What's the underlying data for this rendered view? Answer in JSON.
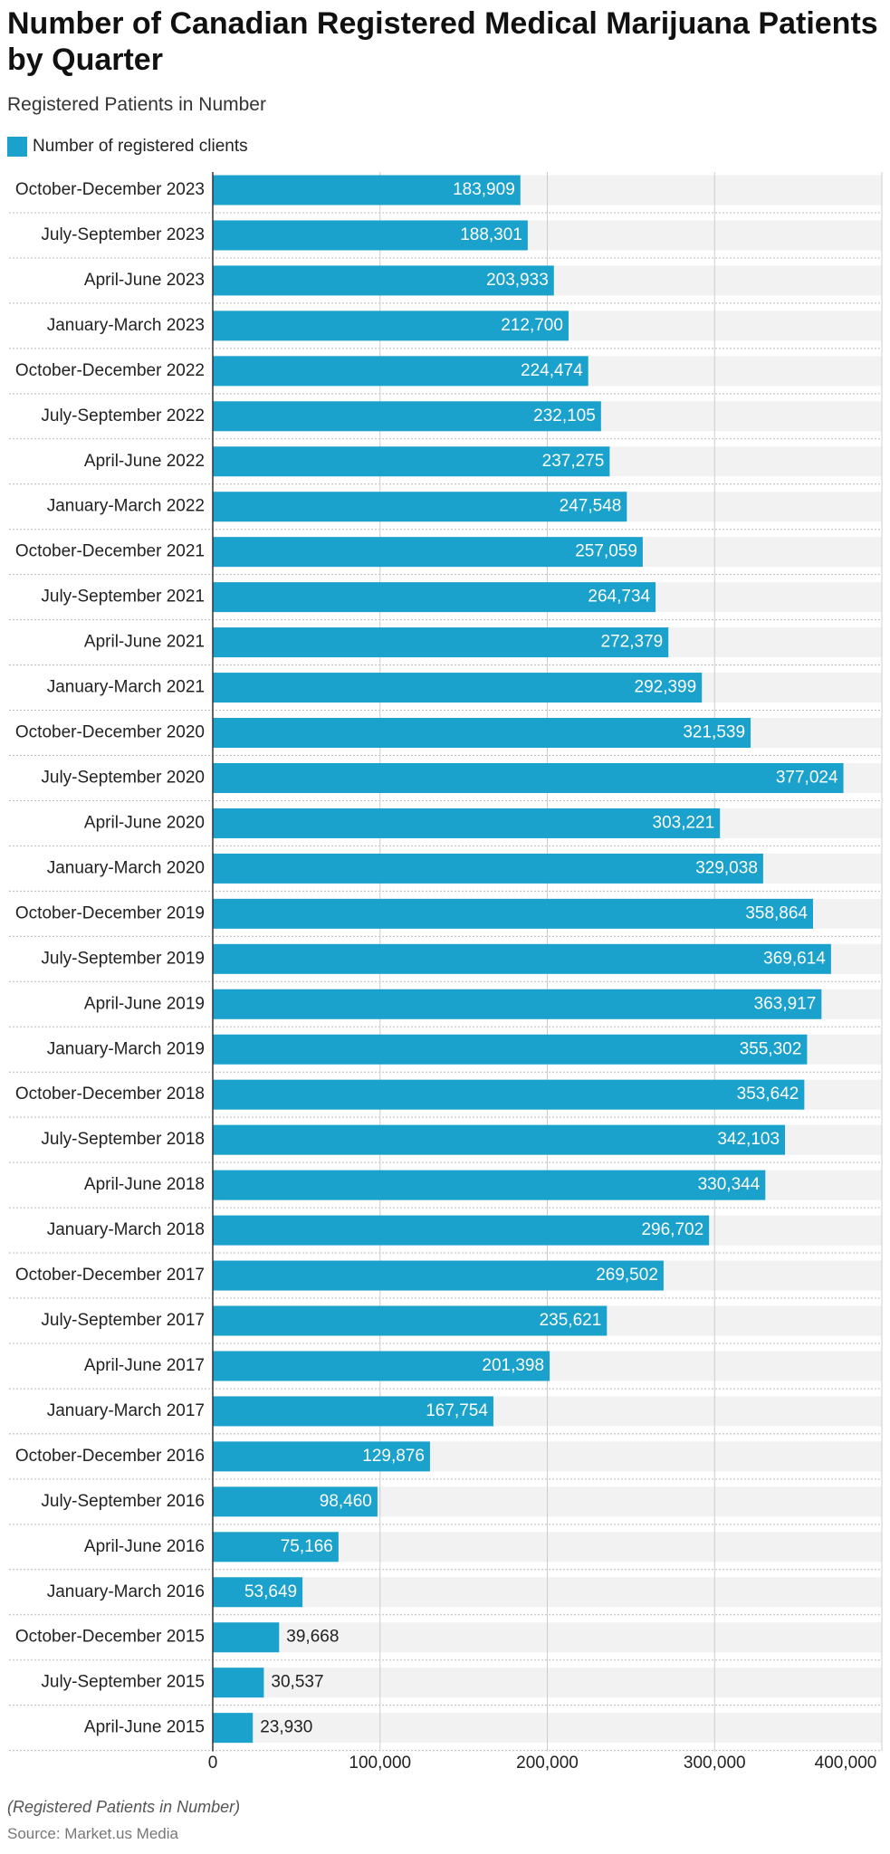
{
  "chart_data": {
    "type": "bar",
    "orientation": "horizontal",
    "title": "Number of Canadian Registered Medical Marijuana Patients by Quarter",
    "subtitle": "Registered Patients in Number",
    "categories": [
      "October-December 2023",
      "July-September 2023",
      "April-June 2023",
      "January-March 2023",
      "October-December 2022",
      "July-September 2022",
      "April-June 2022",
      "January-March 2022",
      "October-December 2021",
      "July-September 2021",
      "April-June 2021",
      "January-March 2021",
      "October-December 2020",
      "July-September 2020",
      "April-June 2020",
      "January-March 2020",
      "October-December 2019",
      "July-September 2019",
      "April-June 2019",
      "January-March 2019",
      "October-December 2018",
      "July-September 2018",
      "April-June 2018",
      "January-March 2018",
      "October-December 2017",
      "July-September 2017",
      "April-June 2017",
      "January-March 2017",
      "October-December 2016",
      "July-September 2016",
      "April-June 2016",
      "January-March 2016",
      "October-December 2015",
      "July-September 2015",
      "April-June 2015"
    ],
    "series": [
      {
        "name": "Number of registered clients",
        "color": "#1aa1cc",
        "values": [
          183909,
          188301,
          203933,
          212700,
          224474,
          232105,
          237275,
          247548,
          257059,
          264734,
          272379,
          292399,
          321539,
          377024,
          303221,
          329038,
          358864,
          369614,
          363917,
          355302,
          353642,
          342103,
          330344,
          296702,
          269502,
          235621,
          201398,
          167754,
          129876,
          98460,
          75166,
          53649,
          39668,
          30537,
          23930
        ],
        "value_labels": [
          "183,909",
          "188,301",
          "203,933",
          "212,700",
          "224,474",
          "232,105",
          "237,275",
          "247,548",
          "257,059",
          "264,734",
          "272,379",
          "292,399",
          "321,539",
          "377,024",
          "303,221",
          "329,038",
          "358,864",
          "369,614",
          "363,917",
          "355,302",
          "353,642",
          "342,103",
          "330,344",
          "296,702",
          "269,502",
          "235,621",
          "201,398",
          "167,754",
          "129,876",
          "98,460",
          "75,166",
          "53,649",
          "39,668",
          "30,537",
          "23,930"
        ]
      }
    ],
    "xlim": [
      0,
      400000
    ],
    "xticks": [
      0,
      {
        "value": 100000,
        "label": "100,000"
      },
      {
        "value": 200000,
        "label": "200,000"
      },
      {
        "value": 300000,
        "label": "300,000"
      },
      {
        "value": 400000,
        "label": "400,000"
      }
    ],
    "grid": true,
    "legend": "top-left",
    "note": "(Registered Patients in Number)",
    "source": "Source: Market.us Media"
  }
}
